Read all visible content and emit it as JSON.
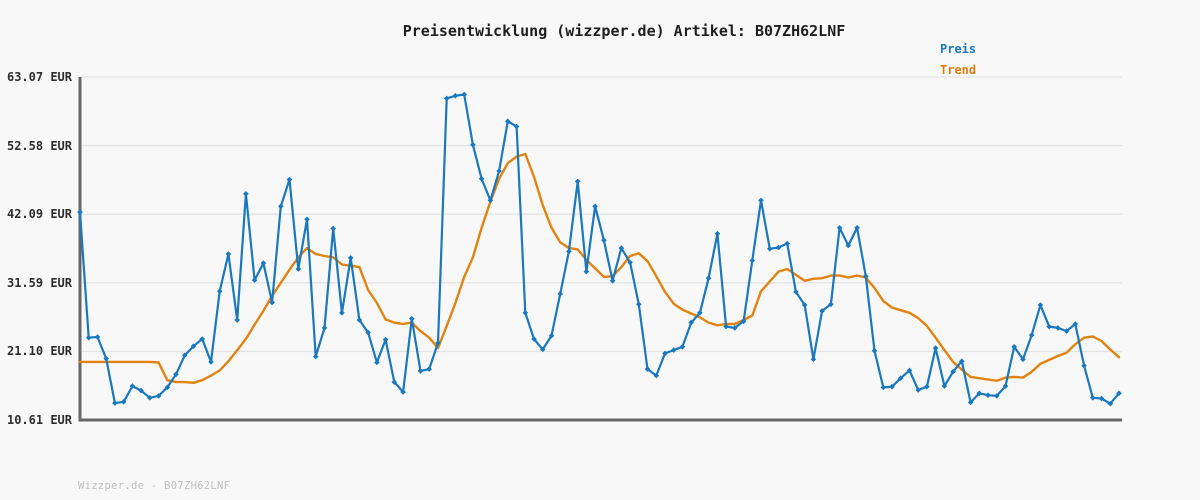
{
  "title": "Preisentwicklung (wizzper.de) Artikel: B07ZH62LNF",
  "legend": {
    "price_label": "Preis",
    "trend_label": "Trend"
  },
  "footer": "Wizzper.de - B07ZH62LNF",
  "colors": {
    "price": "#1a78be",
    "trend": "#e28310",
    "price_text": "#1a78be",
    "trend_text": "#db7e0c",
    "axis": "#666666",
    "grid": "#e4e4e4",
    "tick_label": "#2e2e2e",
    "title": "#1f1f1f",
    "footer": "#bfbfbf",
    "background": "#f8f8f8"
  },
  "y_axis": {
    "unit": "EUR",
    "tick_labels": [
      "63.07 EUR",
      "52.58 EUR",
      "42.09 EUR",
      "31.59 EUR",
      "21.10 EUR",
      "10.61 EUR"
    ],
    "tick_values": [
      63.07,
      52.58,
      42.09,
      31.59,
      21.1,
      10.61
    ]
  },
  "chart_data": {
    "type": "line",
    "title": "Preisentwicklung (wizzper.de) Artikel: B07ZH62LNF",
    "xlabel": "",
    "ylabel": "EUR",
    "x_tick_labels": [],
    "ylim": [
      10.61,
      63.07
    ],
    "yticks": [
      10.61,
      21.1,
      31.59,
      42.09,
      52.58,
      63.07
    ],
    "grid": true,
    "legend_position": "top-right",
    "series": [
      {
        "name": "Preis",
        "marker": "diamond",
        "values": [
          42.4,
          23.2,
          23.3,
          20.0,
          13.2,
          13.4,
          15.8,
          15.1,
          14.0,
          14.3,
          15.6,
          17.6,
          20.5,
          21.9,
          23.0,
          19.5,
          30.3,
          36.0,
          25.9,
          45.2,
          32.0,
          34.6,
          28.6,
          43.3,
          47.4,
          33.7,
          41.3,
          20.3,
          24.7,
          39.9,
          27.0,
          35.4,
          25.9,
          24.0,
          19.4,
          22.9,
          16.4,
          14.9,
          26.1,
          18.1,
          18.4,
          22.4,
          59.8,
          60.2,
          60.4,
          52.7,
          47.5,
          44.2,
          48.7,
          56.3,
          55.5,
          27.0,
          23.0,
          21.4,
          23.5,
          29.9,
          36.4,
          47.1,
          33.3,
          43.3,
          38.1,
          31.9,
          36.9,
          34.7,
          28.3,
          18.4,
          17.4,
          20.8,
          21.3,
          21.8,
          25.5,
          27.0,
          32.3,
          39.1,
          24.9,
          24.7,
          25.7,
          35.0,
          44.2,
          36.8,
          37.0,
          37.6,
          30.2,
          28.2,
          19.9,
          27.3,
          28.3,
          40.0,
          37.3,
          40.0,
          32.6,
          21.2,
          15.6,
          15.7,
          17.0,
          18.2,
          15.2,
          15.7,
          21.6,
          15.8,
          18.0,
          19.6,
          13.3,
          14.7,
          14.4,
          14.3,
          15.8,
          21.8,
          19.9,
          23.6,
          28.2,
          24.9,
          24.7,
          24.2,
          25.3,
          18.9,
          14.0,
          13.9,
          13.1,
          14.7
        ]
      },
      {
        "name": "Trend",
        "marker": "none",
        "values": [
          19.5,
          19.5,
          19.5,
          19.5,
          19.5,
          19.5,
          19.5,
          19.5,
          19.5,
          19.4,
          16.7,
          16.4,
          16.4,
          16.3,
          16.7,
          17.4,
          18.2,
          19.6,
          21.3,
          23.0,
          25.2,
          27.3,
          29.6,
          31.6,
          33.6,
          35.5,
          36.9,
          36.0,
          35.7,
          35.5,
          34.4,
          34.2,
          34.0,
          30.5,
          28.5,
          26.0,
          25.5,
          25.3,
          25.5,
          24.2,
          23.2,
          21.6,
          25.0,
          28.5,
          32.5,
          35.5,
          40.0,
          44.0,
          47.5,
          49.9,
          50.9,
          51.3,
          47.8,
          43.5,
          40.0,
          37.8,
          36.9,
          36.7,
          35.1,
          33.8,
          32.5,
          32.6,
          34.0,
          35.7,
          36.1,
          34.9,
          32.6,
          30.2,
          28.4,
          27.5,
          26.9,
          26.3,
          25.5,
          25.1,
          25.3,
          25.3,
          25.9,
          26.6,
          30.3,
          31.8,
          33.3,
          33.7,
          32.8,
          31.9,
          32.2,
          32.3,
          32.7,
          32.7,
          32.4,
          32.7,
          32.4,
          30.8,
          28.8,
          27.8,
          27.4,
          27.0,
          26.2,
          25.0,
          23.2,
          21.3,
          19.5,
          18.3,
          17.2,
          17.0,
          16.8,
          16.6,
          17.1,
          17.2,
          17.1,
          18.0,
          19.2,
          19.8,
          20.4,
          20.9,
          22.2,
          23.2,
          23.4,
          22.7,
          21.4,
          20.2
        ]
      }
    ]
  }
}
